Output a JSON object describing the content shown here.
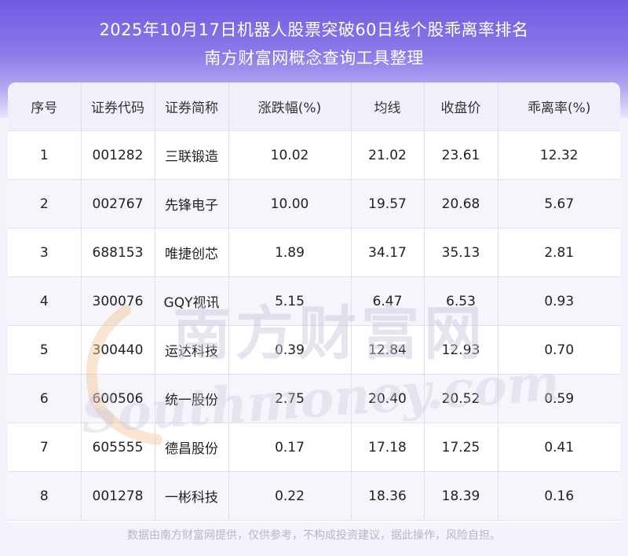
{
  "header": {
    "title_line1": "2025年10月17日机器人股票突破60日线个股乖离率排名",
    "title_line2": "南方财富网概念查询工具整理"
  },
  "table": {
    "columns": [
      "序号",
      "证券代码",
      "证券简称",
      "涨跌幅(%)",
      "均线",
      "收盘价",
      "乖离率(%)"
    ],
    "rows": [
      [
        "1",
        "001282",
        "三联锻造",
        "10.02",
        "21.02",
        "23.61",
        "12.32"
      ],
      [
        "2",
        "002767",
        "先锋电子",
        "10.00",
        "19.57",
        "20.68",
        "5.67"
      ],
      [
        "3",
        "688153",
        "唯捷创芯",
        "1.89",
        "34.17",
        "35.13",
        "2.81"
      ],
      [
        "4",
        "300076",
        "GQY视讯",
        "5.15",
        "6.47",
        "6.53",
        "0.93"
      ],
      [
        "5",
        "300440",
        "运达科技",
        "0.39",
        "12.84",
        "12.93",
        "0.70"
      ],
      [
        "6",
        "600506",
        "统一股份",
        "2.75",
        "20.40",
        "20.52",
        "0.59"
      ],
      [
        "7",
        "605555",
        "德昌股份",
        "0.17",
        "17.18",
        "17.25",
        "0.41"
      ],
      [
        "8",
        "001278",
        "一彬科技",
        "0.22",
        "18.36",
        "18.39",
        "0.16"
      ]
    ]
  },
  "watermark": {
    "cn": "南方财富网",
    "en": "Southmoney.com"
  },
  "footer": {
    "disclaimer": "数据由南方财富网提供，仅供参考，不构成投资建议，据此操作，风险自担。"
  },
  "colors": {
    "header_top": "#6f5ce0",
    "header_mid": "#8a7ae8",
    "table_header_bg": "#f1effa",
    "row_alt_bg": "#f6f5fb",
    "watermark": "#c9c5d8",
    "watermark_accent": "#f2c59a"
  }
}
